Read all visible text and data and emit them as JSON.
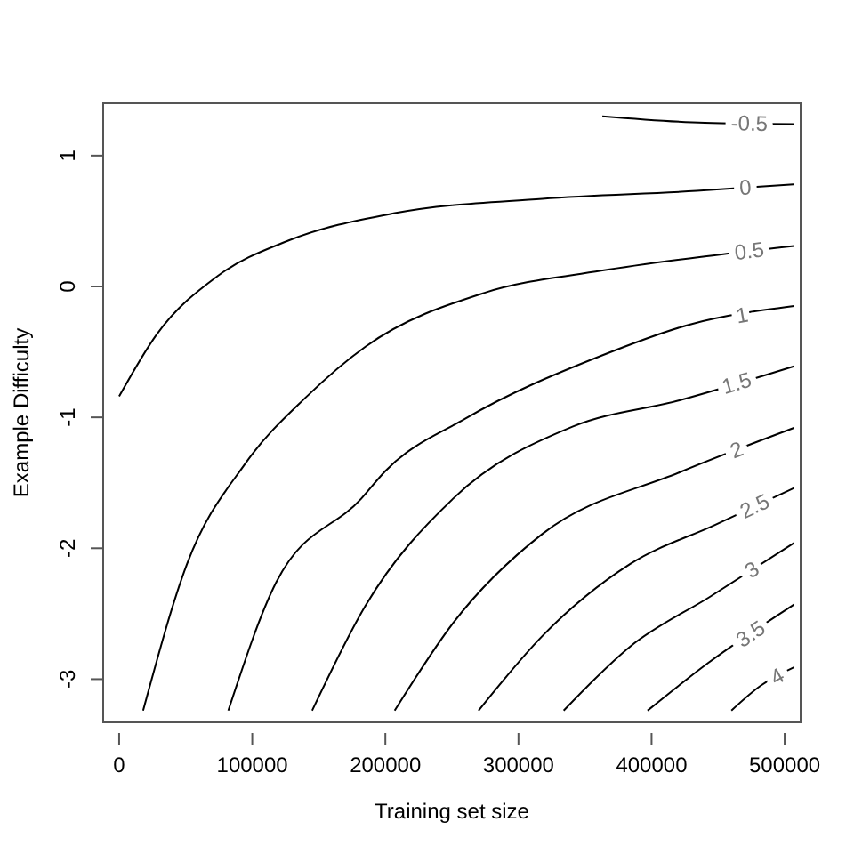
{
  "chart_data": {
    "type": "line",
    "xlabel": "Training set size",
    "ylabel": "Example Difficulty",
    "xlim": [
      -12000,
      512000
    ],
    "ylim": [
      -3.33,
      1.4
    ],
    "xticks": [
      0,
      100000,
      200000,
      300000,
      400000,
      500000
    ],
    "yticks": [
      -3,
      -2,
      -1,
      0,
      1
    ],
    "grid": false,
    "marker": "none",
    "line_style": "solid",
    "series": [
      {
        "name": "-0.5",
        "color": "#000000",
        "x": [
          363000,
          440000,
          507000
        ],
        "values": [
          1.3,
          1.25,
          1.24
        ]
      },
      {
        "name": "0",
        "color": "#000000",
        "x": [
          0,
          28000,
          74000,
          127000,
          207000,
          318000,
          434000,
          507000
        ],
        "values": [
          -0.84,
          -0.37,
          0.08,
          0.35,
          0.56,
          0.67,
          0.73,
          0.78
        ]
      },
      {
        "name": "0.5",
        "color": "#000000",
        "x": [
          18000,
          51000,
          95000,
          141000,
          185000,
          274000,
          362000,
          440000,
          507000
        ],
        "values": [
          -3.24,
          -2.12,
          -1.35,
          -0.84,
          -0.46,
          -0.05,
          0.12,
          0.23,
          0.31
        ]
      },
      {
        "name": "1",
        "color": "#000000",
        "x": [
          82000,
          118000,
          182000,
          200000,
          260000,
          362000,
          429000,
          507000
        ],
        "values": [
          -3.24,
          -2.26,
          -1.62,
          -1.41,
          -1.01,
          -0.53,
          -0.29,
          -0.15
        ]
      },
      {
        "name": "1.5",
        "color": "#000000",
        "x": [
          145000,
          185000,
          251000,
          341000,
          421000,
          507000
        ],
        "values": [
          -3.24,
          -2.44,
          -1.62,
          -1.07,
          -0.87,
          -0.61
        ]
      },
      {
        "name": "2",
        "color": "#000000",
        "x": [
          207000,
          251000,
          318000,
          421000,
          507000
        ],
        "values": [
          -3.24,
          -2.57,
          -1.89,
          -1.42,
          -1.08
        ]
      },
      {
        "name": "2.5",
        "color": "#000000",
        "x": [
          270000,
          318000,
          384000,
          448000,
          507000
        ],
        "values": [
          -3.24,
          -2.67,
          -2.12,
          -1.82,
          -1.54
        ]
      },
      {
        "name": "3",
        "color": "#000000",
        "x": [
          334000,
          384000,
          444000,
          507000
        ],
        "values": [
          -3.24,
          -2.75,
          -2.37,
          -1.96
        ]
      },
      {
        "name": "3.5",
        "color": "#000000",
        "x": [
          397000,
          442000,
          507000
        ],
        "values": [
          -3.24,
          -2.88,
          -2.43
        ]
      },
      {
        "name": "4",
        "color": "#000000",
        "x": [
          460000,
          482000,
          507000
        ],
        "values": [
          -3.24,
          -3.05,
          -2.91
        ]
      }
    ]
  }
}
